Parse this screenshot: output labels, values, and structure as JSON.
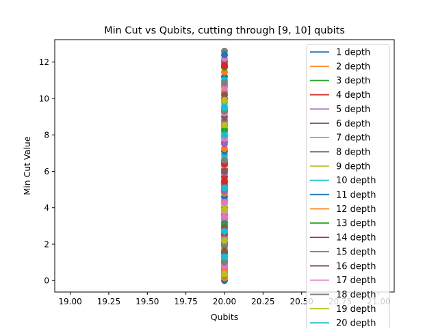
{
  "chart_data": {
    "type": "scatter",
    "title": "Min Cut vs Qubits, cutting through [9, 10] qubits",
    "xlabel": "Qubits",
    "ylabel": "Min Cut Value",
    "xlim": [
      18.9,
      21.1
    ],
    "ylim": [
      -0.63,
      13.23
    ],
    "xticks": [
      "19.00",
      "19.25",
      "19.50",
      "19.75",
      "20.00",
      "20.25",
      "20.50",
      "20.75",
      "21.00"
    ],
    "xtick_values": [
      19.0,
      19.25,
      19.5,
      19.75,
      20.0,
      20.25,
      20.5,
      20.75,
      21.0
    ],
    "yticks": [
      "0",
      "2",
      "4",
      "6",
      "8",
      "10",
      "12"
    ],
    "ytick_values": [
      0,
      2,
      4,
      6,
      8,
      10,
      12
    ],
    "grid": false,
    "legend_position": "top-right",
    "series": [
      {
        "name": "1 depth",
        "color": "#1f77b4",
        "x": [
          20,
          20,
          20,
          20,
          20
        ],
        "y": [
          0.0,
          2.6,
          5.0,
          7.6,
          11.2
        ]
      },
      {
        "name": "2 depth",
        "color": "#ff7f0e",
        "x": [
          20,
          20,
          20,
          20,
          20
        ],
        "y": [
          0.15,
          2.8,
          5.3,
          7.9,
          11.45
        ]
      },
      {
        "name": "3 depth",
        "color": "#2ca02c",
        "x": [
          20,
          20,
          20,
          20,
          20
        ],
        "y": [
          0.3,
          3.0,
          5.5,
          8.2,
          11.7
        ]
      },
      {
        "name": "4 depth",
        "color": "#d62728",
        "x": [
          20,
          20,
          20,
          20,
          20
        ],
        "y": [
          0.45,
          3.2,
          5.7,
          8.5,
          11.8
        ]
      },
      {
        "name": "5 depth",
        "color": "#9467bd",
        "x": [
          20,
          20,
          20,
          20,
          20
        ],
        "y": [
          0.6,
          3.4,
          5.9,
          8.8,
          11.9
        ]
      },
      {
        "name": "6 depth",
        "color": "#8c564b",
        "x": [
          20,
          20,
          20,
          20,
          20
        ],
        "y": [
          0.75,
          3.6,
          6.1,
          9.0,
          12.05
        ]
      },
      {
        "name": "7 depth",
        "color": "#e377c2",
        "x": [
          20,
          20,
          20,
          20,
          20
        ],
        "y": [
          0.9,
          3.8,
          6.3,
          9.2,
          12.2
        ]
      },
      {
        "name": "8 depth",
        "color": "#7f7f7f",
        "x": [
          20,
          20,
          20,
          20,
          20
        ],
        "y": [
          1.05,
          4.0,
          6.5,
          9.4,
          12.6
        ]
      },
      {
        "name": "9 depth",
        "color": "#bcbd22",
        "x": [
          20,
          20,
          20,
          20,
          20
        ],
        "y": [
          1.2,
          4.2,
          6.7,
          9.6,
          10.3
        ]
      },
      {
        "name": "10 depth",
        "color": "#17becf",
        "x": [
          20,
          20,
          20,
          20,
          20
        ],
        "y": [
          1.35,
          4.4,
          6.9,
          9.8,
          11.0
        ]
      },
      {
        "name": "11 depth",
        "color": "#1f77b4",
        "x": [
          20,
          20,
          20,
          20,
          20
        ],
        "y": [
          1.5,
          4.6,
          7.1,
          10.0,
          12.4
        ]
      },
      {
        "name": "12 depth",
        "color": "#ff7f0e",
        "x": [
          20,
          20,
          20,
          20,
          20
        ],
        "y": [
          0.5,
          1.7,
          4.8,
          7.25,
          10.4
        ]
      },
      {
        "name": "13 depth",
        "color": "#2ca02c",
        "x": [
          20,
          20,
          20,
          20,
          20
        ],
        "y": [
          1.9,
          3.1,
          5.2,
          8.3,
          10.0
        ]
      },
      {
        "name": "14 depth",
        "color": "#d62728",
        "x": [
          20,
          20,
          20,
          20,
          20
        ],
        "y": [
          2.1,
          2.5,
          5.4,
          6.4,
          11.8
        ]
      },
      {
        "name": "15 depth",
        "color": "#9467bd",
        "x": [
          20,
          20,
          20,
          20,
          20
        ],
        "y": [
          2.3,
          1.1,
          4.9,
          7.5,
          10.7
        ]
      },
      {
        "name": "16 depth",
        "color": "#8c564b",
        "x": [
          20,
          20,
          20,
          20,
          20
        ],
        "y": [
          1.6,
          2.9,
          6.0,
          8.6,
          10.2
        ]
      },
      {
        "name": "17 depth",
        "color": "#e377c2",
        "x": [
          20,
          20,
          20,
          20,
          20
        ],
        "y": [
          0.8,
          3.5,
          4.3,
          7.8,
          10.6
        ]
      },
      {
        "name": "18 depth",
        "color": "#7f7f7f",
        "x": [
          20,
          20,
          20,
          20,
          20
        ],
        "y": [
          1.0,
          2.0,
          6.6,
          9.3,
          10.85
        ]
      },
      {
        "name": "19 depth",
        "color": "#bcbd22",
        "x": [
          20,
          20,
          20,
          20,
          20
        ],
        "y": [
          0.35,
          2.2,
          3.9,
          8.55,
          9.9
        ]
      },
      {
        "name": "20 depth",
        "color": "#17becf",
        "x": [
          20,
          20,
          20,
          20,
          20
        ],
        "y": [
          1.3,
          2.7,
          5.1,
          8.0,
          9.5
        ]
      }
    ]
  }
}
